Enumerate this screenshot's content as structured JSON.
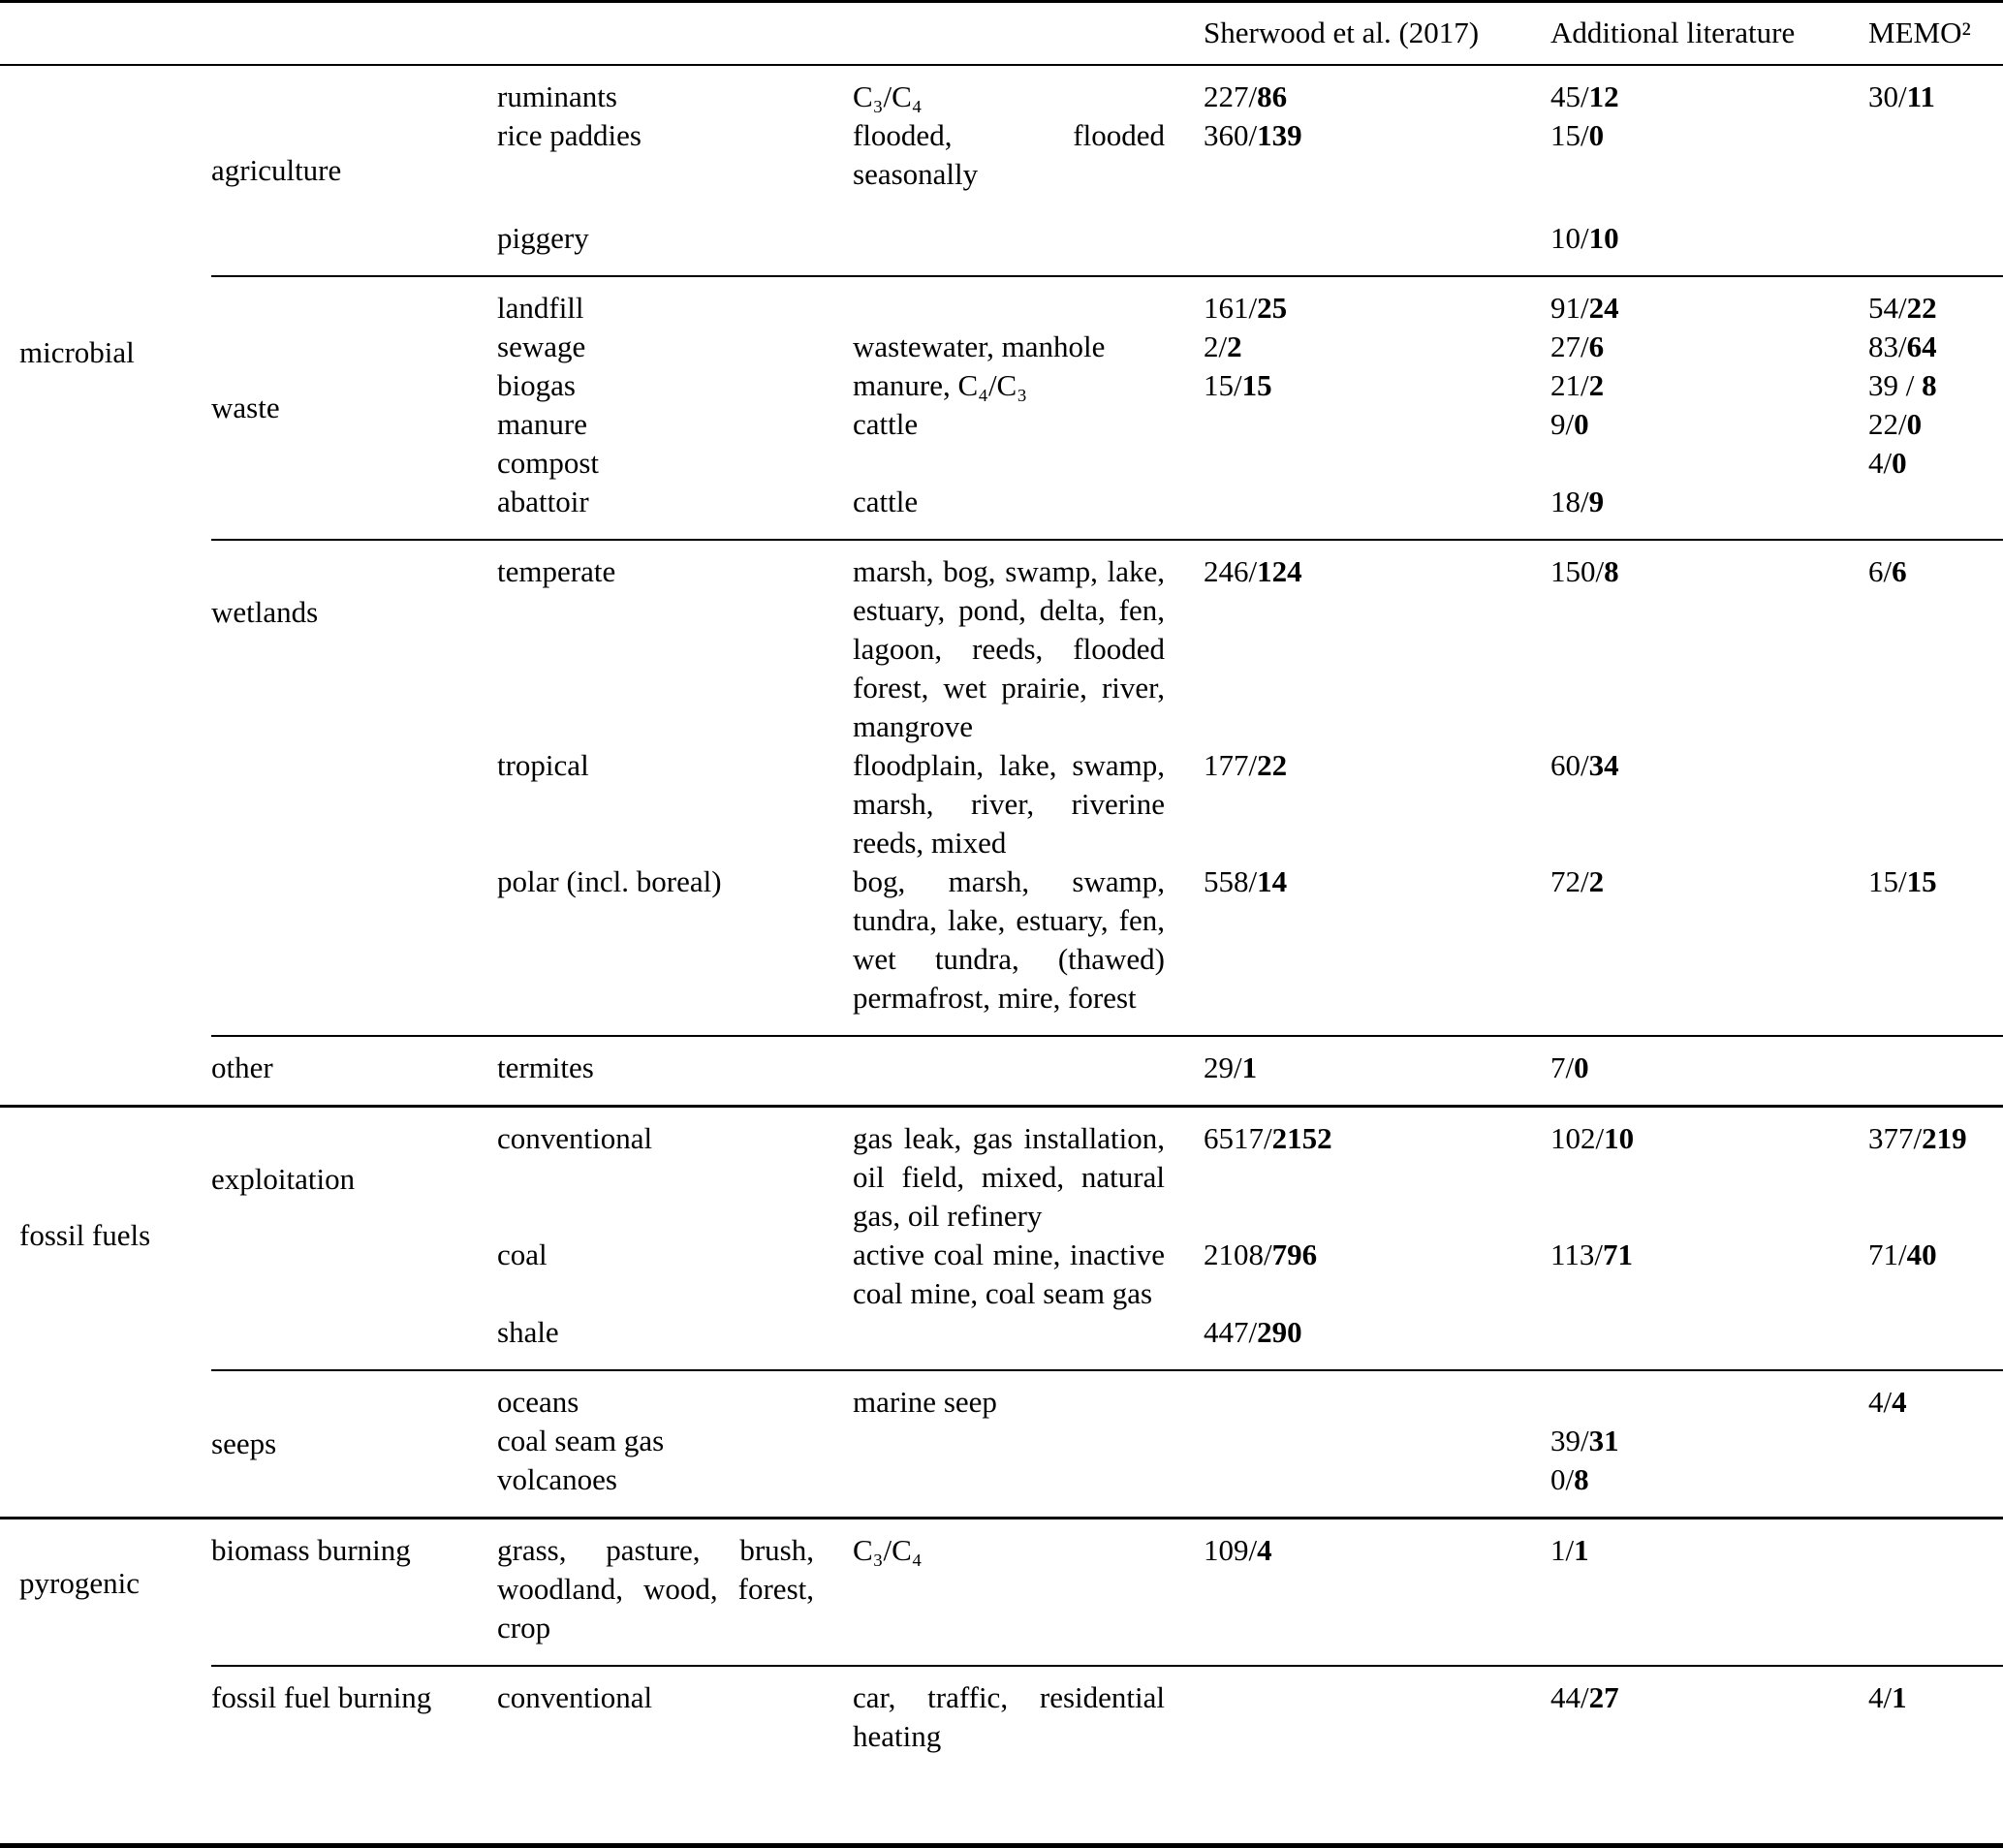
{
  "header": {
    "col_sherwood": "Sherwood et al. (2017)",
    "col_additional": "Additional literature",
    "col_memo": "MEMO²"
  },
  "table": {
    "groups": [
      {
        "category": "microbial",
        "subgroups": [
          {
            "label": "agriculture",
            "label_align": "center",
            "rows": [
              {
                "type": "ruminants",
                "desc": "C₃/C₄",
                "sherwood": "227/86",
                "additional": "45/12",
                "memo": "30/11"
              },
              {
                "type": "rice paddies",
                "desc": "flooded, flooded seasonally",
                "sherwood": "360/139",
                "additional": "15/0",
                "memo": ""
              },
              {
                "type": "piggery",
                "desc": "",
                "sherwood": "",
                "additional": "10/10",
                "memo": "",
                "gap": true
              }
            ]
          },
          {
            "label": "waste",
            "label_align": "center",
            "rows": [
              {
                "type": "landfill",
                "desc": "",
                "sherwood": "161/25",
                "additional": "91/24",
                "memo": "54/22"
              },
              {
                "type": "sewage",
                "desc": "wastewater, manhole",
                "sherwood": "2/2",
                "additional": "27/6",
                "memo": "83/64"
              },
              {
                "type": "biogas",
                "desc": "manure, C₄/C₃",
                "sherwood": "15/15",
                "additional": "21/2",
                "memo": "39 / 8"
              },
              {
                "type": "manure",
                "desc": "cattle",
                "sherwood": "",
                "additional": "9/0",
                "memo": "22/0"
              },
              {
                "type": "compost",
                "desc": "",
                "sherwood": "",
                "additional": "",
                "memo": "4/0"
              },
              {
                "type": "abattoir",
                "desc": "cattle",
                "sherwood": "",
                "additional": "18/9",
                "memo": ""
              }
            ]
          },
          {
            "label": "wetlands",
            "label_align": "top-offset",
            "rows": [
              {
                "type": "temperate",
                "desc": "marsh, bog, swamp, lake, estuary, pond, delta, fen, lagoon, reeds, flooded forest, wet prairie, river, mangrove",
                "sherwood": "246/124",
                "additional": "150/8",
                "memo": "6/6"
              },
              {
                "type": "tropical",
                "desc": "floodplain, lake, swamp, marsh, river, riverine reeds, mixed",
                "sherwood": "177/22",
                "additional": "60/34",
                "memo": ""
              },
              {
                "type": "polar (incl. boreal)",
                "desc": "bog, marsh, swamp, tundra, lake, estuary, fen, wet tundra, (thawed) permafrost, mire, forest",
                "sherwood": "558/14",
                "additional": "72/2",
                "memo": "15/15"
              }
            ]
          },
          {
            "label": "other",
            "label_align": "top",
            "rows": [
              {
                "type": "termites",
                "desc": "",
                "sherwood": "29/1",
                "additional": "7/0",
                "memo": ""
              }
            ]
          }
        ]
      },
      {
        "category": "fossil fuels",
        "subgroups": [
          {
            "label": "exploitation",
            "label_align": "top-offset",
            "rows": [
              {
                "type": "conventional",
                "desc": "gas leak, gas installation, oil field, mixed, natural gas, oil refinery",
                "sherwood": "6517/2152",
                "additional": "102/10",
                "memo": "377/219"
              },
              {
                "type": "coal",
                "desc": "active coal mine, inactive coal mine, coal seam gas",
                "sherwood": "2108/796",
                "additional": "113/71",
                "memo": "71/40"
              },
              {
                "type": "shale",
                "desc": "",
                "sherwood": "447/290",
                "additional": "",
                "memo": ""
              }
            ]
          },
          {
            "label": "seeps",
            "label_align": "center",
            "rows": [
              {
                "type": "oceans",
                "desc": "marine seep",
                "sherwood": "",
                "additional": "",
                "memo": "4/4"
              },
              {
                "type": "coal seam gas",
                "desc": "",
                "sherwood": "",
                "additional": "39/31",
                "memo": ""
              },
              {
                "type": "volcanoes",
                "desc": "",
                "sherwood": "",
                "additional": "0/8",
                "memo": ""
              }
            ]
          }
        ]
      },
      {
        "category": "pyrogenic",
        "subgroups": [
          {
            "label": "biomass burning",
            "label_align": "top",
            "rows": [
              {
                "type": "grass, pasture, brush, woodland, wood, forest, crop",
                "desc": "C₃/C₄",
                "sherwood": "109/4",
                "additional": "1/1",
                "memo": ""
              }
            ]
          },
          {
            "label": "fossil fuel burning",
            "label_align": "top",
            "rows": [
              {
                "type": "conventional",
                "desc": "car, traffic, residential heating",
                "sherwood": "",
                "additional": "44/27",
                "memo": "4/1"
              }
            ]
          }
        ]
      }
    ]
  }
}
